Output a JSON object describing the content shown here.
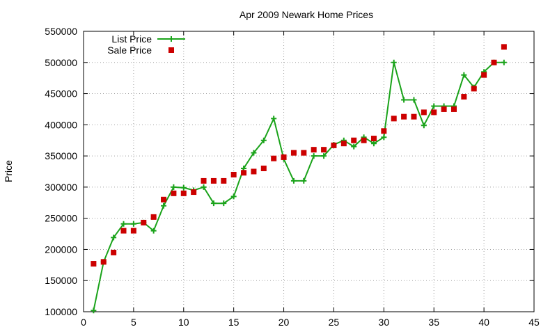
{
  "chart_data": {
    "type": "line",
    "title": "Apr 2009 Newark Home Prices",
    "xlabel": "",
    "ylabel": "Price",
    "xlim": [
      0,
      45
    ],
    "ylim": [
      100000,
      550000
    ],
    "xticks": [
      0,
      5,
      10,
      15,
      20,
      25,
      30,
      35,
      40,
      45
    ],
    "yticks": [
      100000,
      150000,
      200000,
      250000,
      300000,
      350000,
      400000,
      450000,
      500000,
      550000
    ],
    "grid": true,
    "legend_position": "top-left",
    "series": [
      {
        "name": "List Price",
        "style": "line-with-plus-markers",
        "color": "#1aa31a",
        "points": [
          [
            1,
            102000
          ],
          [
            2,
            180000
          ],
          [
            3,
            219000
          ],
          [
            4,
            241000
          ],
          [
            5,
            241000
          ],
          [
            6,
            243000
          ],
          [
            7,
            230000
          ],
          [
            8,
            270000
          ],
          [
            9,
            300000
          ],
          [
            10,
            299000
          ],
          [
            11,
            295000
          ],
          [
            12,
            300000
          ],
          [
            13,
            274000
          ],
          [
            14,
            274000
          ],
          [
            15,
            285000
          ],
          [
            16,
            330000
          ],
          [
            17,
            355000
          ],
          [
            18,
            375000
          ],
          [
            19,
            410000
          ],
          [
            20,
            345000
          ],
          [
            21,
            310000
          ],
          [
            22,
            310000
          ],
          [
            23,
            350000
          ],
          [
            24,
            350000
          ],
          [
            25,
            368000
          ],
          [
            26,
            375000
          ],
          [
            27,
            365000
          ],
          [
            28,
            380000
          ],
          [
            29,
            370000
          ],
          [
            30,
            380000
          ],
          [
            31,
            500000
          ],
          [
            32,
            440000
          ],
          [
            33,
            440000
          ],
          [
            34,
            399000
          ],
          [
            35,
            430000
          ],
          [
            36,
            430000
          ],
          [
            37,
            430000
          ],
          [
            38,
            480000
          ],
          [
            39,
            460000
          ],
          [
            40,
            485000
          ],
          [
            41,
            500000
          ],
          [
            42,
            500000
          ]
        ]
      },
      {
        "name": "Sale Price",
        "style": "square-markers",
        "color": "#cc0000",
        "points": [
          [
            1,
            177000
          ],
          [
            2,
            180000
          ],
          [
            3,
            195000
          ],
          [
            4,
            230000
          ],
          [
            5,
            230000
          ],
          [
            6,
            243000
          ],
          [
            7,
            252000
          ],
          [
            8,
            280000
          ],
          [
            9,
            290000
          ],
          [
            10,
            290000
          ],
          [
            11,
            292000
          ],
          [
            12,
            310000
          ],
          [
            13,
            310000
          ],
          [
            14,
            310000
          ],
          [
            15,
            320000
          ],
          [
            16,
            323000
          ],
          [
            17,
            325000
          ],
          [
            18,
            330000
          ],
          [
            19,
            346000
          ],
          [
            20,
            348000
          ],
          [
            21,
            355000
          ],
          [
            22,
            355000
          ],
          [
            23,
            360000
          ],
          [
            24,
            360000
          ],
          [
            25,
            367000
          ],
          [
            26,
            370000
          ],
          [
            27,
            375000
          ],
          [
            28,
            375000
          ],
          [
            29,
            378000
          ],
          [
            30,
            390000
          ],
          [
            31,
            410000
          ],
          [
            32,
            413000
          ],
          [
            33,
            413000
          ],
          [
            34,
            420000
          ],
          [
            35,
            420000
          ],
          [
            36,
            425000
          ],
          [
            37,
            425000
          ],
          [
            38,
            445000
          ],
          [
            39,
            458000
          ],
          [
            40,
            480000
          ],
          [
            41,
            500000
          ],
          [
            42,
            525000
          ]
        ]
      }
    ]
  }
}
